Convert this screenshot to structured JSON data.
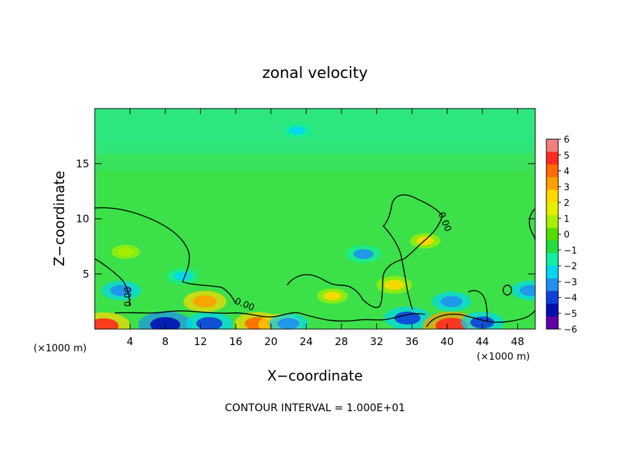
{
  "chart_data": {
    "type": "heatmap",
    "title": "zonal velocity",
    "xlabel": "X−coordinate",
    "ylabel": "Z−coordinate",
    "x_unit_left": "(×1000 m)",
    "x_unit_right": "(×1000 m)",
    "footer": "CONTOUR INTERVAL = 1.000E+01",
    "xlim": [
      0,
      50
    ],
    "ylim": [
      0,
      20
    ],
    "x_ticks": [
      "4",
      "8",
      "12",
      "16",
      "20",
      "24",
      "28",
      "32",
      "36",
      "40",
      "44",
      "48"
    ],
    "x_tick_values": [
      4,
      8,
      12,
      16,
      20,
      24,
      28,
      32,
      36,
      40,
      44,
      48
    ],
    "y_ticks": [
      "5",
      "10",
      "15"
    ],
    "y_tick_values": [
      5,
      10,
      15
    ],
    "contour_label": "0.00",
    "colorbar": {
      "labels": [
        "6",
        "5",
        "4",
        "3",
        "2",
        "1",
        "0",
        "−1",
        "−2",
        "−3",
        "−4",
        "−5",
        "−6"
      ],
      "colors": [
        "#f08080",
        "#ff2a20",
        "#ff6a00",
        "#ffa000",
        "#ffd800",
        "#e6f000",
        "#a8f000",
        "#55dd00",
        "#22dd40",
        "#10f0a0",
        "#00d8f0",
        "#2090f0",
        "#1040d8",
        "#0010b0",
        "#6000a8"
      ]
    },
    "features": [
      {
        "x": 12.5,
        "z": 2.5,
        "v": 3.5
      },
      {
        "x": 3.0,
        "z": 3.5,
        "v": -3.0
      },
      {
        "x": 1.0,
        "z": 0.3,
        "v": 5.0
      },
      {
        "x": 8.0,
        "z": 0.4,
        "v": -5.0
      },
      {
        "x": 13.0,
        "z": 0.5,
        "v": -4.0
      },
      {
        "x": 18.5,
        "z": 0.5,
        "v": 4.0
      },
      {
        "x": 21.0,
        "z": 0.4,
        "v": 3.5
      },
      {
        "x": 22.0,
        "z": 0.5,
        "v": -3.0
      },
      {
        "x": 30.5,
        "z": 6.8,
        "v": -2.5
      },
      {
        "x": 34.0,
        "z": 4.0,
        "v": 2.5
      },
      {
        "x": 35.5,
        "z": 1.0,
        "v": -4.0
      },
      {
        "x": 40.5,
        "z": 2.5,
        "v": -3.0
      },
      {
        "x": 40.5,
        "z": 0.3,
        "v": 5.5
      },
      {
        "x": 44.0,
        "z": 0.6,
        "v": -3.5
      },
      {
        "x": 49.5,
        "z": 3.5,
        "v": -3.0
      },
      {
        "x": 37.5,
        "z": 8.0,
        "v": 1.8
      },
      {
        "x": 27.0,
        "z": 3.0,
        "v": 1.8
      },
      {
        "x": 3.5,
        "z": 7.0,
        "v": 1.5
      },
      {
        "x": 23.0,
        "z": 18.0,
        "v": -1.6
      },
      {
        "x": 10.0,
        "z": 4.8,
        "v": -2.0
      }
    ]
  }
}
